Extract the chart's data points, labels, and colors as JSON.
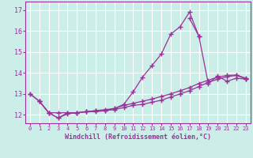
{
  "background_color": "#cceee8",
  "grid_color": "#ffffff",
  "line_color": "#993399",
  "xlabel": "Windchill (Refroidissement éolien,°C)",
  "xlim": [
    -0.5,
    23.5
  ],
  "ylim": [
    11.6,
    17.4
  ],
  "yticks": [
    12,
    13,
    14,
    15,
    16,
    17
  ],
  "xticks": [
    0,
    1,
    2,
    3,
    4,
    5,
    6,
    7,
    8,
    9,
    10,
    11,
    12,
    13,
    14,
    15,
    16,
    17,
    18,
    19,
    20,
    21,
    22,
    23
  ],
  "series": [
    {
      "x": [
        0,
        1,
        2,
        3,
        4,
        5,
        6,
        7,
        8,
        9,
        10,
        11,
        12,
        13,
        14,
        15,
        16,
        17,
        18
      ],
      "y": [
        13.0,
        12.65,
        12.1,
        11.85,
        12.1,
        12.1,
        12.15,
        12.2,
        12.2,
        12.3,
        12.5,
        13.1,
        13.8,
        14.35,
        14.9,
        15.85,
        16.2,
        16.9,
        15.75
      ]
    },
    {
      "x": [
        17,
        18,
        19,
        20,
        21,
        22,
        23
      ],
      "y": [
        16.6,
        15.75,
        13.5,
        13.85,
        13.6,
        13.75,
        13.7
      ]
    },
    {
      "x": [
        0,
        1,
        2,
        3,
        4,
        5,
        6,
        7,
        8,
        9,
        10,
        11,
        12,
        13,
        14,
        15,
        16,
        17,
        18,
        19,
        20,
        21,
        22,
        23
      ],
      "y": [
        13.0,
        12.65,
        12.1,
        11.85,
        12.05,
        12.1,
        12.15,
        12.2,
        12.25,
        12.3,
        12.45,
        12.55,
        12.65,
        12.75,
        12.88,
        13.0,
        13.15,
        13.3,
        13.5,
        13.65,
        13.8,
        13.88,
        13.9,
        13.75
      ]
    },
    {
      "x": [
        1,
        2,
        3,
        4,
        5,
        6,
        7,
        8,
        9,
        10,
        11,
        12,
        13,
        14,
        15,
        16,
        17,
        18,
        19,
        20,
        21,
        22,
        23
      ],
      "y": [
        12.65,
        12.1,
        12.1,
        12.1,
        12.1,
        12.15,
        12.15,
        12.2,
        12.25,
        12.35,
        12.45,
        12.5,
        12.6,
        12.7,
        12.85,
        13.0,
        13.15,
        13.35,
        13.55,
        13.7,
        13.82,
        13.88,
        13.72
      ]
    }
  ]
}
